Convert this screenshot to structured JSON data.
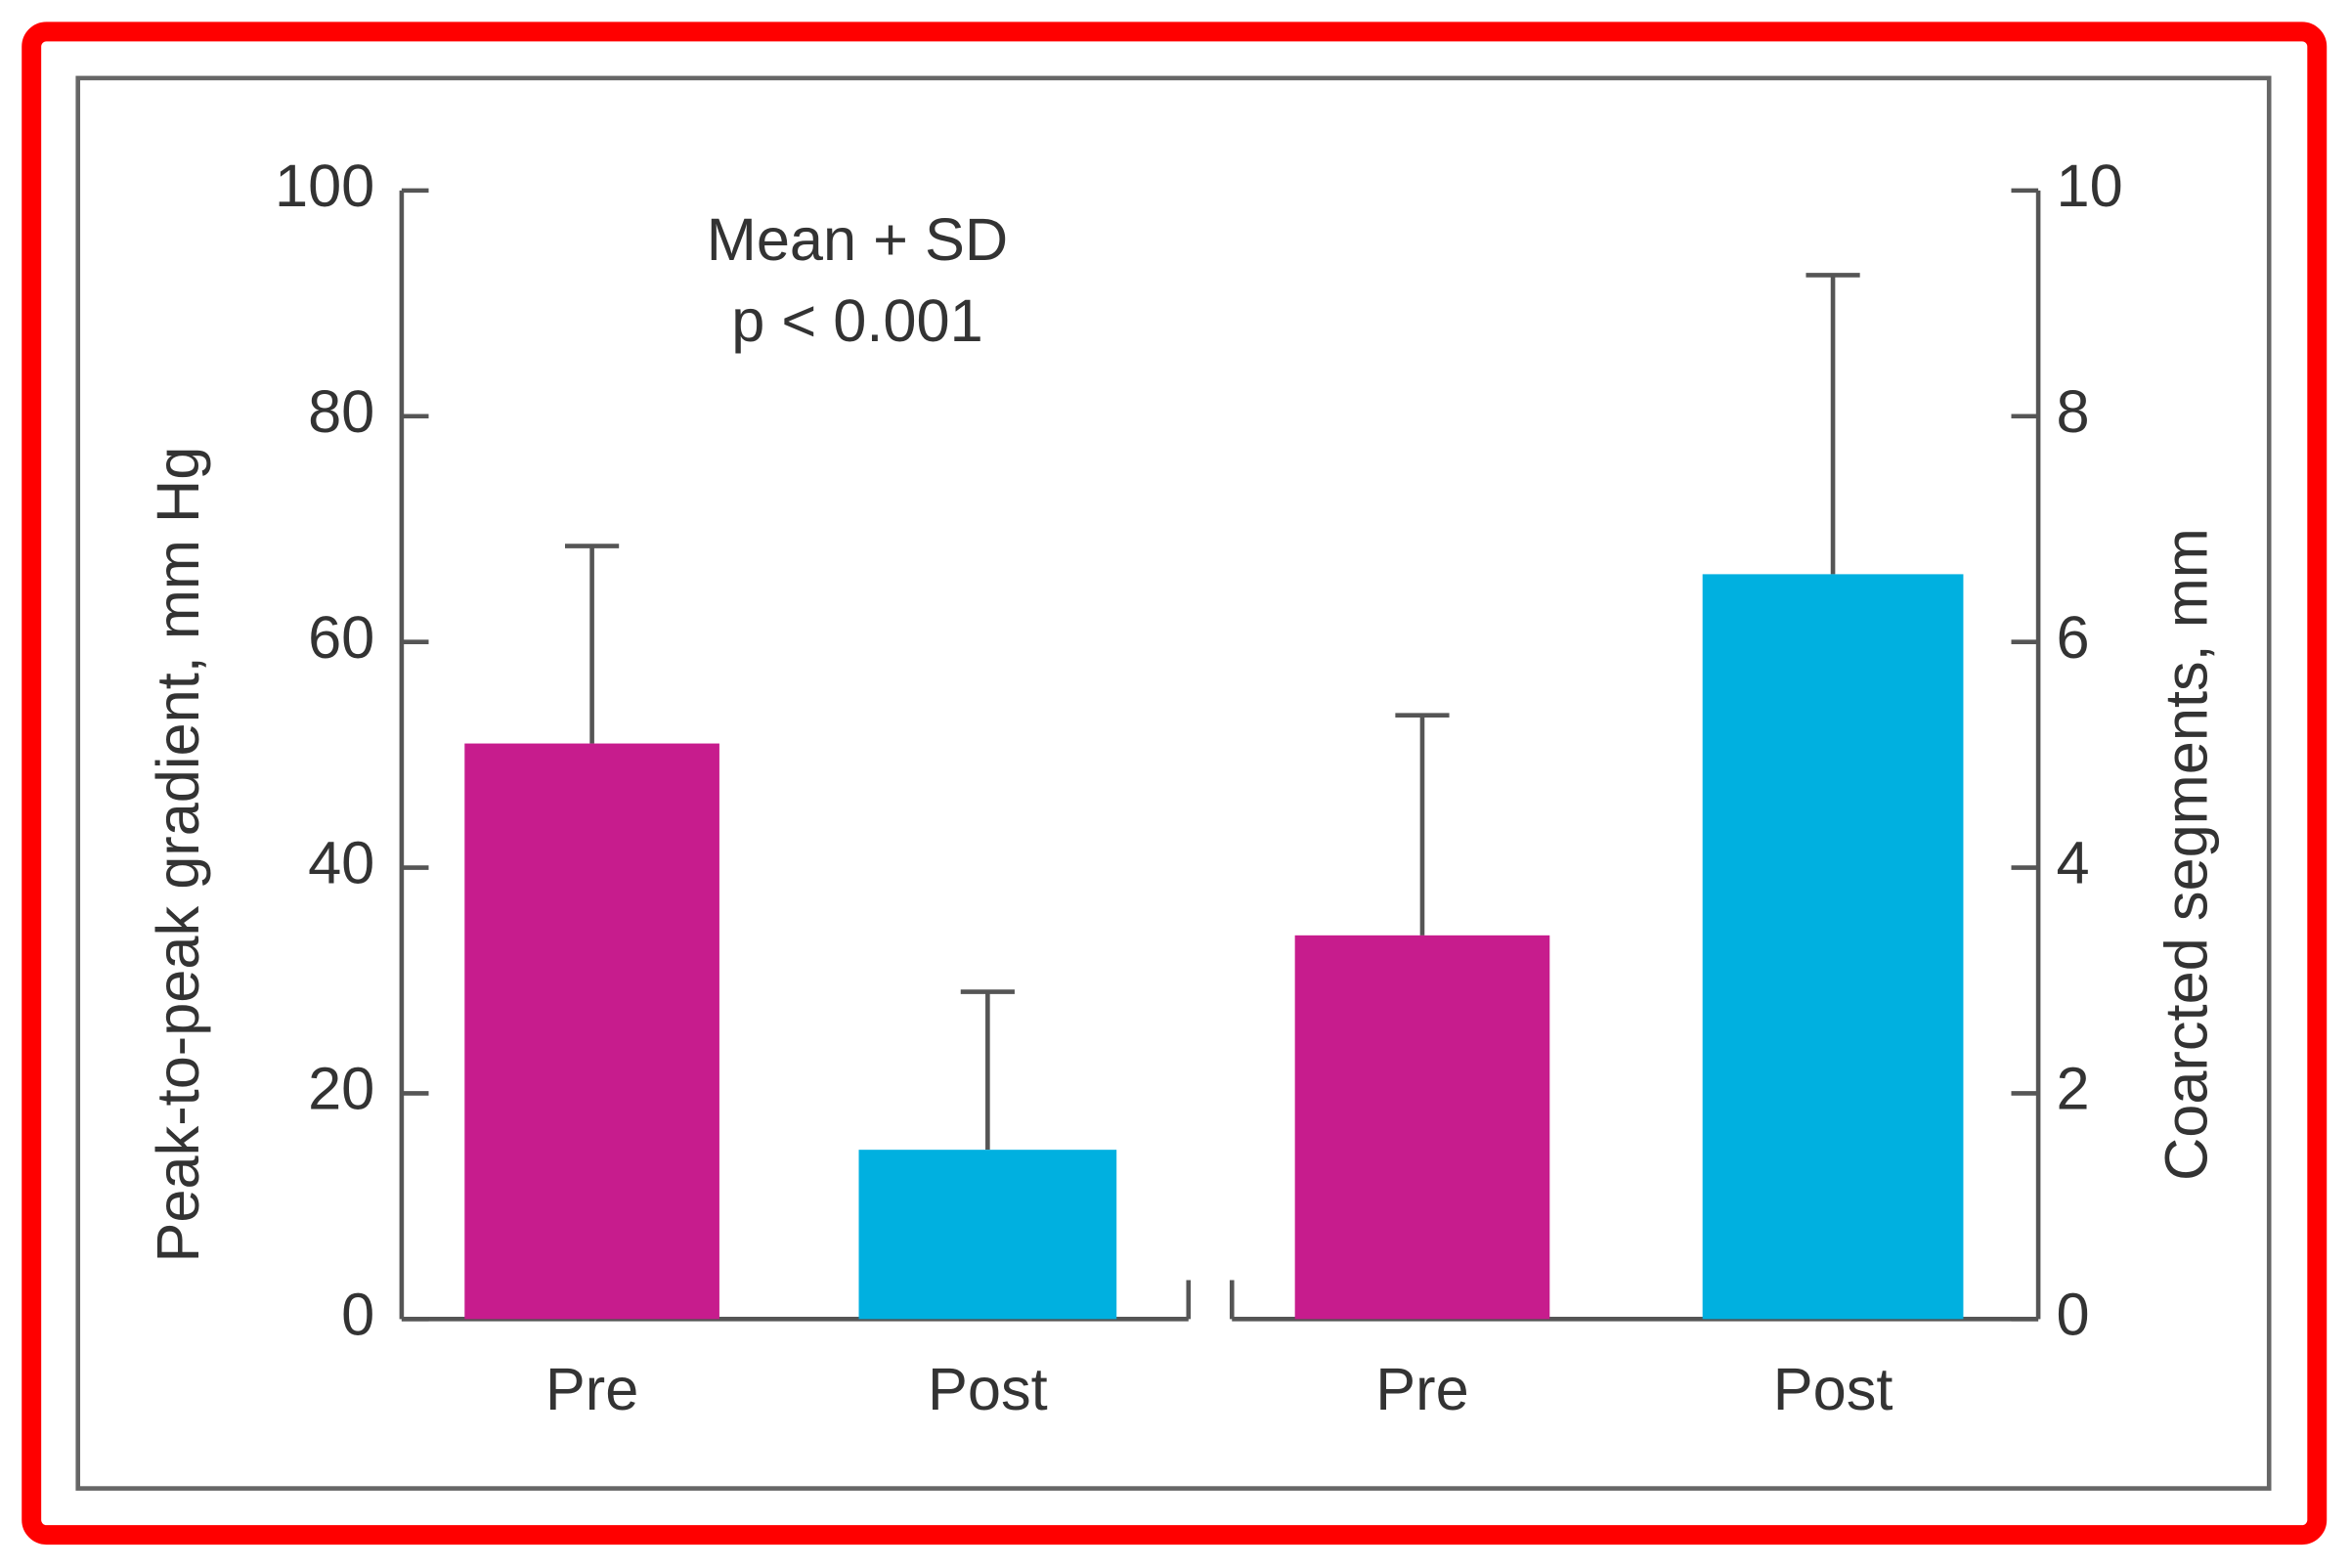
{
  "chart_data": [
    {
      "type": "bar",
      "ylabel": "Peak-to-peak gradient, mm Hg",
      "annotations": [
        "Mean + SD",
        "p < 0.001"
      ],
      "categories": [
        "Pre",
        "Post"
      ],
      "values": [
        51,
        15
      ],
      "errors": [
        17.5,
        14
      ],
      "colors": [
        "#c71c8d",
        "#00b0e0"
      ],
      "ylim": [
        0,
        100
      ],
      "yticks": [
        0,
        20,
        40,
        60,
        80,
        100
      ],
      "axis_side": "left"
    },
    {
      "type": "bar",
      "ylabel": "Coarcted segments, mm",
      "categories": [
        "Pre",
        "Post"
      ],
      "values": [
        3.4,
        6.6
      ],
      "errors": [
        1.95,
        2.65
      ],
      "colors": [
        "#c71c8d",
        "#00b0e0"
      ],
      "ylim": [
        0,
        10
      ],
      "yticks": [
        0,
        2,
        4,
        6,
        8,
        10
      ],
      "axis_side": "right"
    }
  ]
}
